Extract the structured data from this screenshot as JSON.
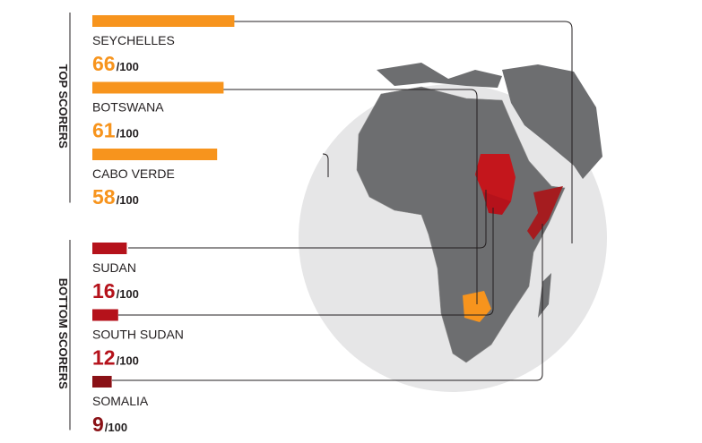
{
  "chart_data": {
    "type": "bar",
    "orientation": "horizontal",
    "xlim": [
      0,
      100
    ],
    "value_suffix": "/100",
    "groups": [
      {
        "label": "TOP SCORERS",
        "categories": [
          "SEYCHELLES",
          "BOTSWANA",
          "CABO VERDE"
        ],
        "values": [
          66,
          61,
          58
        ],
        "colors": [
          "#f7941d",
          "#f7941d",
          "#f7941d"
        ]
      },
      {
        "label": "BOTTOM SCORERS",
        "categories": [
          "SUDAN",
          "SOUTH SUDAN",
          "SOMALIA"
        ],
        "values": [
          16,
          12,
          9
        ],
        "colors": [
          "#b5121b",
          "#b5121b",
          "#8a1116"
        ]
      }
    ]
  }
}
